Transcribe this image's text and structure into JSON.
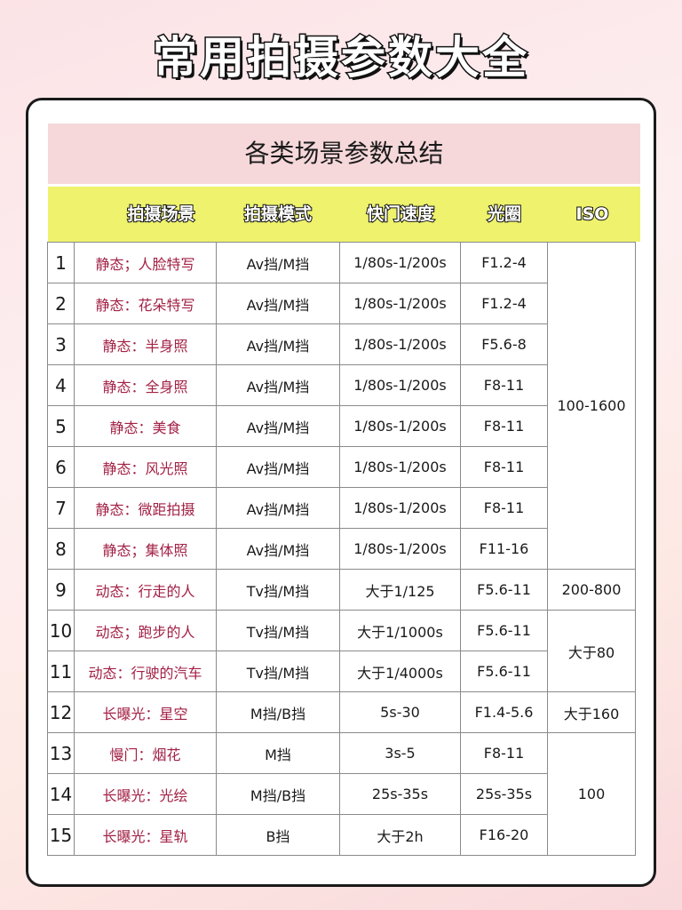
{
  "title": "常用拍摄参数大全",
  "subtitle": "各类场景参数总结",
  "headers": {
    "scene": "拍摄场景",
    "mode": "拍摄模式",
    "shutter": "快门速度",
    "aperture": "光圈",
    "iso": "ISO"
  },
  "rows": [
    {
      "no": "1",
      "scene": "静态；人脸特写",
      "mode": "Av挡/M挡",
      "shutter": "1/80s-1/200s",
      "aperture": "F1.2-4"
    },
    {
      "no": "2",
      "scene": "静态：花朵特写",
      "mode": "Av挡/M挡",
      "shutter": "1/80s-1/200s",
      "aperture": "F1.2-4"
    },
    {
      "no": "3",
      "scene": "静态：半身照",
      "mode": "Av挡/M挡",
      "shutter": "1/80s-1/200s",
      "aperture": "F5.6-8"
    },
    {
      "no": "4",
      "scene": "静态：全身照",
      "mode": "Av挡/M挡",
      "shutter": "1/80s-1/200s",
      "aperture": "F8-11"
    },
    {
      "no": "5",
      "scene": "静态：美食",
      "mode": "Av挡/M挡",
      "shutter": "1/80s-1/200s",
      "aperture": "F8-11"
    },
    {
      "no": "6",
      "scene": "静态：风光照",
      "mode": "Av挡/M挡",
      "shutter": "1/80s-1/200s",
      "aperture": "F8-11"
    },
    {
      "no": "7",
      "scene": "静态：微距拍摄",
      "mode": "Av挡/M挡",
      "shutter": "1/80s-1/200s",
      "aperture": "F8-11"
    },
    {
      "no": "8",
      "scene": "静态；集体照",
      "mode": "Av挡/M挡",
      "shutter": "1/80s-1/200s",
      "aperture": "F11-16"
    },
    {
      "no": "9",
      "scene": "动态：行走的人",
      "mode": "Tv挡/M挡",
      "shutter": "大于1/125",
      "aperture": "F5.6-11"
    },
    {
      "no": "10",
      "scene": "动态；跑步的人",
      "mode": "Tv挡/M挡",
      "shutter": "大于1/1000s",
      "aperture": "F5.6-11"
    },
    {
      "no": "11",
      "scene": "动态：行驶的汽车",
      "mode": "Tv挡/M挡",
      "shutter": "大于1/4000s",
      "aperture": "F5.6-11"
    },
    {
      "no": "12",
      "scene": "长曝光：星空",
      "mode": "M挡/B挡",
      "shutter": "5s-30",
      "aperture": "F1.4-5.6"
    },
    {
      "no": "13",
      "scene": "慢门：烟花",
      "mode": "M挡",
      "shutter": "3s-5",
      "aperture": "F8-11"
    },
    {
      "no": "14",
      "scene": "长曝光：光绘",
      "mode": "M挡/B挡",
      "shutter": "25s-35s",
      "aperture": "25s-35s"
    },
    {
      "no": "15",
      "scene": "长曝光：星轨",
      "mode": "B挡",
      "shutter": "大于2h",
      "aperture": "F16-20"
    }
  ],
  "iso_groups": [
    {
      "rows": "1-8",
      "value": "100-1600"
    },
    {
      "rows": "9",
      "value": "200-800"
    },
    {
      "rows": "10-11",
      "value": "大于80"
    },
    {
      "rows": "12",
      "value": "大于160"
    },
    {
      "rows": "13-15",
      "value": "100"
    }
  ]
}
